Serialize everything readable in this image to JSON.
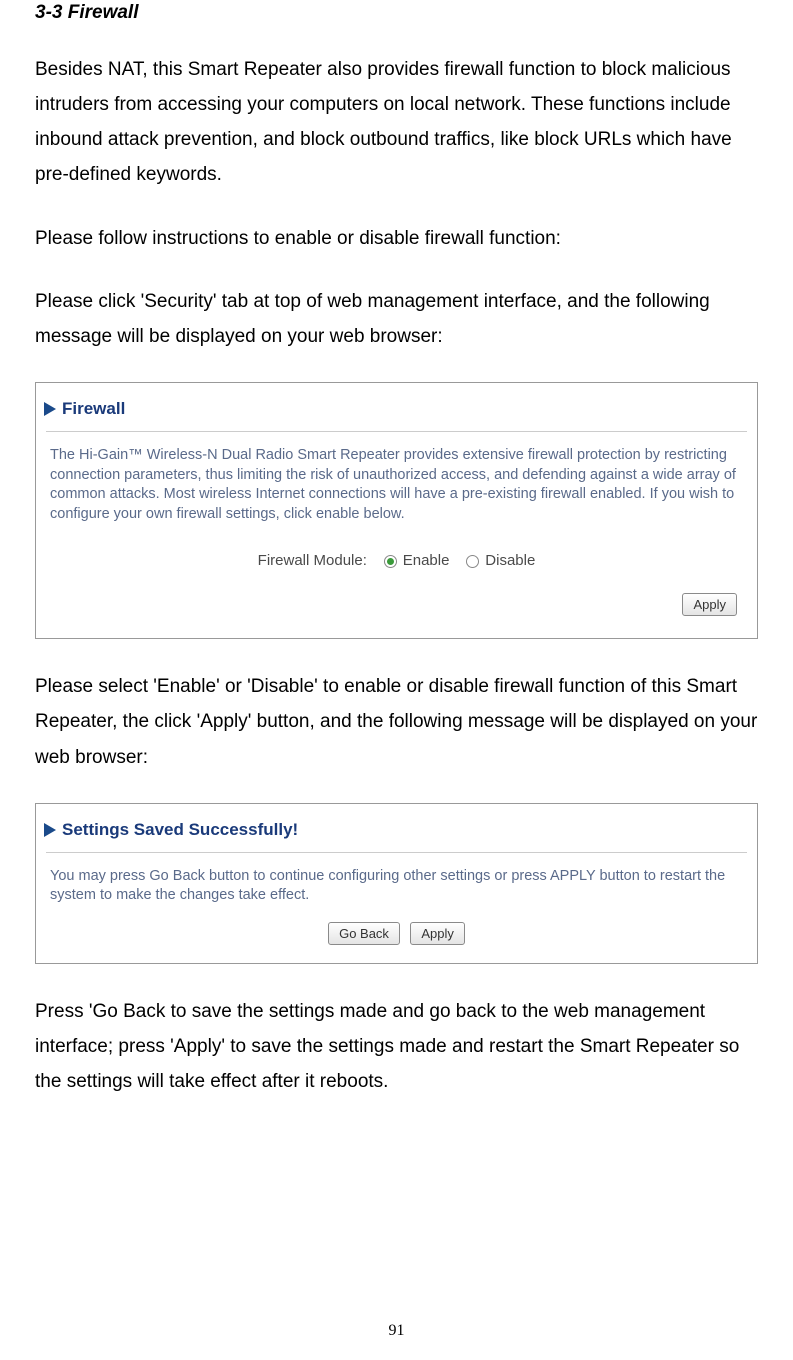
{
  "section_title": "3-3 Firewall",
  "para1": "Besides NAT, this Smart Repeater also provides firewall function to block malicious intruders from accessing your computers on local network. These functions include inbound attack prevention, and block outbound traffics, like block URLs which have pre-defined keywords.",
  "para2": "Please follow instructions to enable or disable firewall function:",
  "para3": "Please click 'Security' tab at top of web management interface, and the following message will be displayed on your web browser:",
  "panel1": {
    "title": "Firewall",
    "desc": "The Hi-Gain™ Wireless-N Dual Radio Smart Repeater provides extensive firewall protection by restricting connection parameters, thus limiting the risk of unauthorized access, and defending against a wide array of common attacks. Most wireless Internet connections will have a pre-existing firewall enabled. If you wish to configure your own firewall settings, click enable below.",
    "module_label": "Firewall Module:",
    "enable_label": "Enable",
    "disable_label": "Disable",
    "apply_label": "Apply"
  },
  "para4": "Please select 'Enable' or 'Disable' to enable or disable firewall function of this Smart Repeater, the click 'Apply' button, and the following message will be displayed on your web browser:",
  "panel2": {
    "title": "Settings Saved Successfully!",
    "desc": "You may press Go Back button to continue configuring other settings or press APPLY button to restart the system to make the changes take effect.",
    "goback_label": "Go Back",
    "apply_label": "Apply"
  },
  "para5": "Press 'Go Back to save the settings made and go back to the web management interface; press 'Apply' to save the settings made and restart the Smart Repeater so the settings will take effect after it reboots.",
  "page_number": "91"
}
